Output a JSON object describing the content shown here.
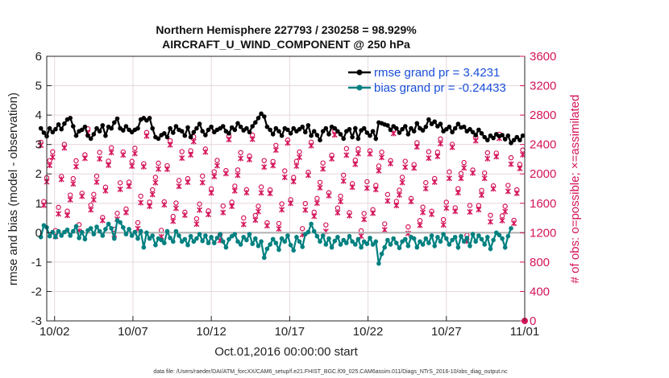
{
  "chart_data": {
    "type": "line",
    "title_line1": "Northern Hemisphere 227793 / 230258 = 98.929%",
    "title_line2": "AIRCRAFT_U_WIND_COMPONENT @ 250 hPa",
    "xlabel": "Oct.01,2016 00:00:00 start",
    "ylabel_left": "rmse and bias (model - observation)",
    "ylabel_right": "# of obs: o=possible; ×=assimilated",
    "footer": "data file: /Users/raeder/DAI/ATM_forcXX/CAM6_setup/f.e21.FHIST_BGC.f09_025.CAM6assim.011/Diags_NTrS_2016-10/obs_diag_output.nc",
    "x_range_days": [
      0.5,
      31.0
    ],
    "ylim_left": [
      -3,
      6
    ],
    "ylim_right": [
      0,
      3600
    ],
    "x_ticks": [
      {
        "day": 1,
        "label": "10/02"
      },
      {
        "day": 6,
        "label": "10/07"
      },
      {
        "day": 11,
        "label": "10/12"
      },
      {
        "day": 16,
        "label": "10/17"
      },
      {
        "day": 21,
        "label": "10/22"
      },
      {
        "day": 26,
        "label": "10/27"
      },
      {
        "day": 31,
        "label": "11/01"
      }
    ],
    "y_ticks_left": [
      "-3",
      "-2",
      "-1",
      "0",
      "1",
      "2",
      "3",
      "4",
      "5",
      "6"
    ],
    "y_ticks_right": [
      "0",
      "400",
      "800",
      "1200",
      "1600",
      "2000",
      "2400",
      "2800",
      "3200",
      "3600"
    ],
    "legend": {
      "rmse": "rmse grand pr = 3.4231",
      "bias": "bias grand pr = -0.24433"
    },
    "colors": {
      "rmse": "#000000",
      "bias": "#008080",
      "obs": "#d4145a",
      "legend_text": "#1a4fd8",
      "zero_line": "#b0b0b0",
      "grid": "#e6d6e0"
    },
    "series": {
      "rmse": [
        3.55,
        3.4,
        3.28,
        3.55,
        3.42,
        3.52,
        3.68,
        3.52,
        3.71,
        3.85,
        3.9,
        3.62,
        3.3,
        3.45,
        3.5,
        3.6,
        3.3,
        3.2,
        3.35,
        3.55,
        3.45,
        3.65,
        3.3,
        3.6,
        3.55,
        3.75,
        3.88,
        3.55,
        3.48,
        3.62,
        3.5,
        3.42,
        3.5,
        3.55,
        3.85,
        3.9,
        3.82,
        3.9,
        3.55,
        3.25,
        3.2,
        3.32,
        3.38,
        3.25,
        3.55,
        3.4,
        3.62,
        3.5,
        3.45,
        3.3,
        3.58,
        3.25,
        3.42,
        3.55,
        3.7,
        3.45,
        3.32,
        3.5,
        3.6,
        3.42,
        3.5,
        3.55,
        3.62,
        3.45,
        3.38,
        3.58,
        3.5,
        3.72,
        3.6,
        3.48,
        3.55,
        3.42,
        3.62,
        3.75,
        3.9,
        4.05,
        3.95,
        3.6,
        3.5,
        3.35,
        3.55,
        3.45,
        3.3,
        3.55,
        3.5,
        3.38,
        3.55,
        3.45,
        3.52,
        3.6,
        3.42,
        3.65,
        3.3,
        3.45,
        3.32,
        3.15,
        3.45,
        3.55,
        3.35,
        3.6,
        3.55,
        3.45,
        3.35,
        3.2,
        3.45,
        3.52,
        3.25,
        3.55,
        3.2,
        3.48,
        3.55,
        3.4,
        3.3,
        3.45,
        3.2,
        3.75,
        3.72,
        3.68,
        3.65,
        3.5,
        3.62,
        3.55,
        3.4,
        3.52,
        3.62,
        3.35,
        3.55,
        3.45,
        3.72,
        3.55,
        3.48,
        3.6,
        3.85,
        3.7,
        3.78,
        3.62,
        3.7,
        3.45,
        3.52,
        3.6,
        3.42,
        3.55,
        3.7,
        3.58,
        3.6,
        3.45,
        3.52,
        3.42,
        3.32,
        3.5,
        3.38,
        3.25,
        3.15,
        3.3,
        3.22,
        3.35,
        3.28,
        3.32,
        3.18,
        3.3,
        3.05,
        3.15,
        3.25,
        3.15,
        3.3
      ],
      "bias": [
        -0.15,
        0.25,
        0.18,
        -0.12,
        0.02,
        -0.15,
        0.05,
        -0.1,
        0.02,
        0.1,
        -0.1,
        0.05,
        0.22,
        -0.18,
        0.02,
        -0.22,
        0.08,
        0.15,
        -0.05,
        0.2,
        0.05,
        -0.1,
        0.12,
        0.3,
        0.15,
        -0.2,
        0.42,
        0.35,
        0.18,
        -0.05,
        0.12,
        -0.1,
        0.02,
        -0.2,
        0.05,
        -0.5,
        0.0,
        -0.2,
        -0.1,
        -0.42,
        -0.2,
        -0.25,
        -0.35,
        0.05,
        -0.18,
        -0.3,
        0.05,
        -0.1,
        -0.3,
        -0.22,
        -0.42,
        -0.12,
        -0.3,
        -0.2,
        -0.05,
        -0.28,
        -0.1,
        -0.35,
        -0.15,
        -0.35,
        -0.18,
        -0.05,
        -0.3,
        -0.5,
        -0.22,
        -0.12,
        -0.05,
        -0.3,
        -0.4,
        -0.15,
        -0.25,
        -0.05,
        -0.38,
        -0.2,
        -0.45,
        -0.3,
        -0.85,
        -0.55,
        -0.4,
        -0.22,
        -0.35,
        -0.58,
        -0.2,
        -0.3,
        -0.1,
        -0.42,
        -0.6,
        -0.15,
        -0.3,
        -0.48,
        -0.05,
        0.02,
        0.3,
        0.05,
        -0.12,
        -0.3,
        -0.1,
        -0.4,
        -0.2,
        -0.5,
        -0.28,
        -0.15,
        -0.4,
        -0.25,
        -0.35,
        -0.12,
        -0.3,
        -0.4,
        -0.22,
        -0.5,
        -0.3,
        -0.38,
        -0.18,
        -0.4,
        -0.3,
        -1.05,
        -0.72,
        -0.5,
        -0.25,
        -0.4,
        -0.2,
        -0.35,
        -0.52,
        -0.3,
        -0.22,
        -0.45,
        -0.15,
        -0.2,
        -0.5,
        -0.3,
        -0.4,
        -0.2,
        -0.35,
        -0.1,
        -0.45,
        -0.15,
        -0.3,
        -0.05,
        -0.2,
        -0.4,
        -0.25,
        -0.15,
        -0.5,
        -0.12,
        -0.3,
        -0.18,
        -0.45,
        -0.05,
        -0.3,
        -0.1,
        -0.22,
        -0.4,
        -0.15,
        -0.55,
        -0.25,
        0.0,
        -0.08,
        -0.2,
        -0.5,
        -0.12,
        0.15
      ]
    }
  }
}
